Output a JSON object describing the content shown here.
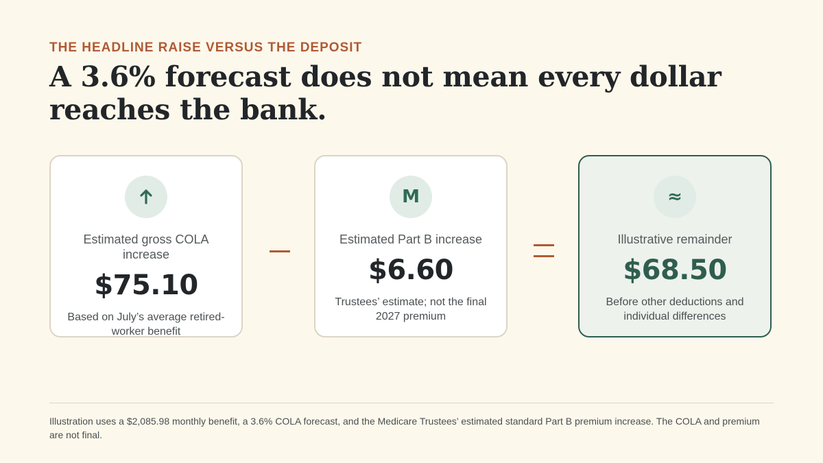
{
  "eyebrow": "THE HEADLINE RAISE VERSUS THE DEPOSIT",
  "headline": "A 3.6% forecast does not mean every dollar reaches the bank.",
  "cards": [
    {
      "icon": "arrow-up-icon",
      "icon_glyph": "↑",
      "label": "Estimated gross COLA increase",
      "value": "$75.10",
      "note": "Based on July’s average retired-worker benefit"
    },
    {
      "icon": "medicare-m-icon",
      "icon_glyph": "M",
      "label": "Estimated Part B increase",
      "value": "$6.60",
      "note": "Trustees’ estimate; not the final 2027 premium"
    },
    {
      "icon": "approximately-icon",
      "icon_glyph": "≈",
      "label": "Illustrative remainder",
      "value": "$68.50",
      "note": "Before other deductions and individual differences"
    }
  ],
  "operators": {
    "minus": "minus-sign",
    "equals": "equals-sign"
  },
  "footnote": "Illustration uses a $2,085.98 monthly benefit, a 3.6% COLA forecast, and the Medicare Trustees’ estimated standard Part B premium increase. The COLA and premium are not final.",
  "colors": {
    "background": "#fdf8ec",
    "accent": "#b05a33",
    "green": "#2f5e4e",
    "badge": "#e2ece6",
    "result_card": "#edf2ec",
    "card_border": "#ddd4c4",
    "text": "#222629"
  }
}
